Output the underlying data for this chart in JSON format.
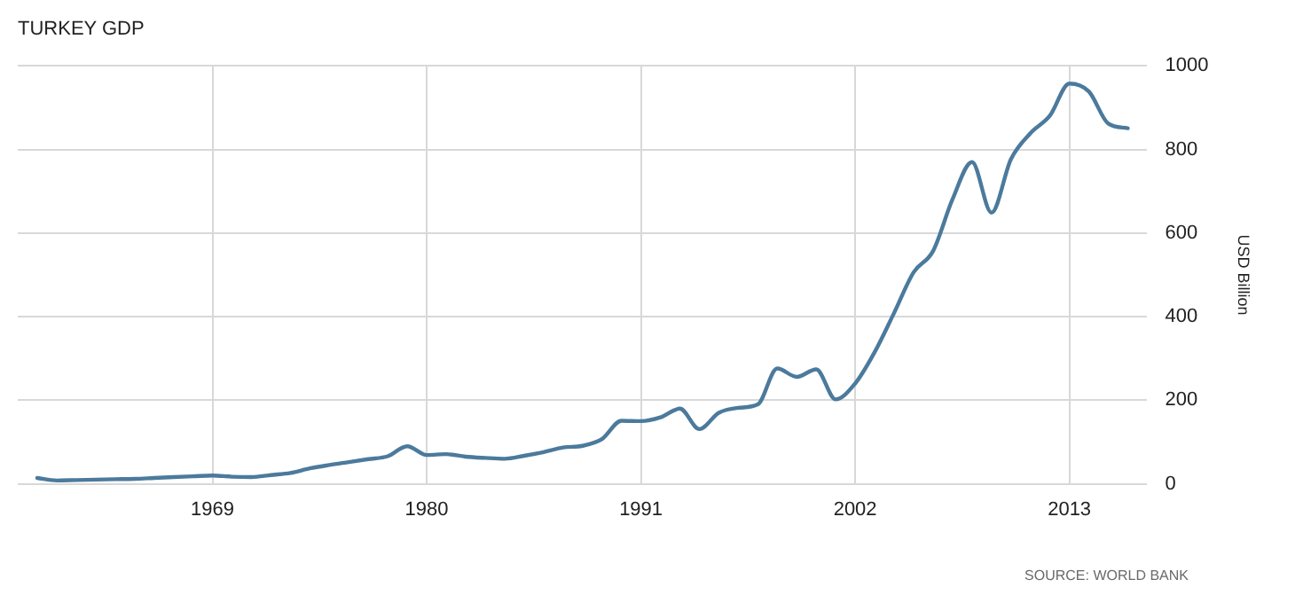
{
  "chart_data": {
    "type": "line",
    "title": "TURKEY GDP",
    "ylabel": "USD Billion",
    "annotations": [
      "SOURCE: WORLD BANK"
    ],
    "x": [
      1960,
      1961,
      1962,
      1963,
      1964,
      1965,
      1966,
      1967,
      1968,
      1969,
      1970,
      1971,
      1972,
      1973,
      1974,
      1975,
      1976,
      1977,
      1978,
      1979,
      1980,
      1981,
      1982,
      1983,
      1984,
      1985,
      1986,
      1987,
      1988,
      1989,
      1990,
      1991,
      1992,
      1993,
      1994,
      1995,
      1996,
      1997,
      1998,
      1999,
      2000,
      2001,
      2002,
      2003,
      2004,
      2005,
      2006,
      2007,
      2008,
      2009,
      2010,
      2011,
      2012,
      2013,
      2014,
      2015,
      2016
    ],
    "series": [
      {
        "color": "#4b7a9c",
        "values": [
          14,
          8,
          9,
          10,
          11,
          12,
          14,
          16,
          18,
          20,
          17,
          16,
          21,
          26,
          37,
          45,
          52,
          59,
          66,
          90,
          69,
          71,
          65,
          62,
          60,
          67,
          76,
          87,
          91,
          107,
          151,
          150,
          159,
          180,
          131,
          170,
          182,
          190,
          276,
          256,
          274,
          202,
          240,
          315,
          409,
          506,
          557,
          681,
          770,
          649,
          777,
          839,
          881,
          958,
          939,
          862,
          851
        ]
      }
    ],
    "xlim": [
      1959,
      2017
    ],
    "xticks": [
      1969,
      1980,
      1991,
      2002,
      2013
    ],
    "ylim": [
      0,
      1000
    ],
    "yticks": [
      0,
      200,
      400,
      600,
      800,
      1000
    ],
    "grid": true,
    "legend": false,
    "marker": "none",
    "line_style": "solid"
  }
}
